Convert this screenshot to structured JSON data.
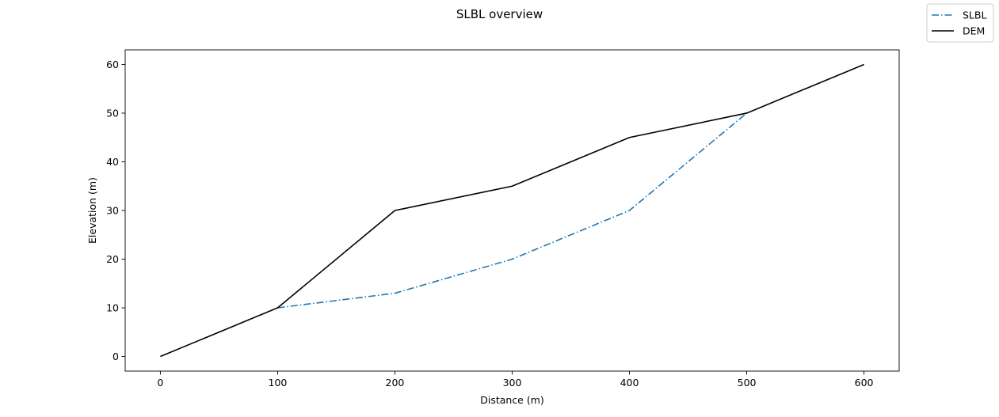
{
  "chart_data": {
    "type": "line",
    "title": "SLBL overview",
    "xlabel": "Distance (m)",
    "ylabel": "Elevation (m)",
    "xlim": [
      -30,
      630
    ],
    "ylim": [
      -3,
      63
    ],
    "xticks": [
      0,
      100,
      200,
      300,
      400,
      500,
      600
    ],
    "yticks": [
      0,
      10,
      20,
      30,
      40,
      50,
      60
    ],
    "grid": false,
    "legend_position": "top-right (outside axes)",
    "series": [
      {
        "name": "SLBL",
        "color": "#1f77b4",
        "linestyle": "dashdot",
        "x": [
          100,
          200,
          300,
          400,
          500
        ],
        "y": [
          10,
          13,
          20,
          30,
          50
        ]
      },
      {
        "name": "DEM",
        "color": "#000000",
        "linestyle": "solid",
        "x": [
          0,
          100,
          200,
          300,
          400,
          500,
          600
        ],
        "y": [
          0,
          10,
          30,
          35,
          45,
          50,
          60
        ]
      }
    ]
  }
}
